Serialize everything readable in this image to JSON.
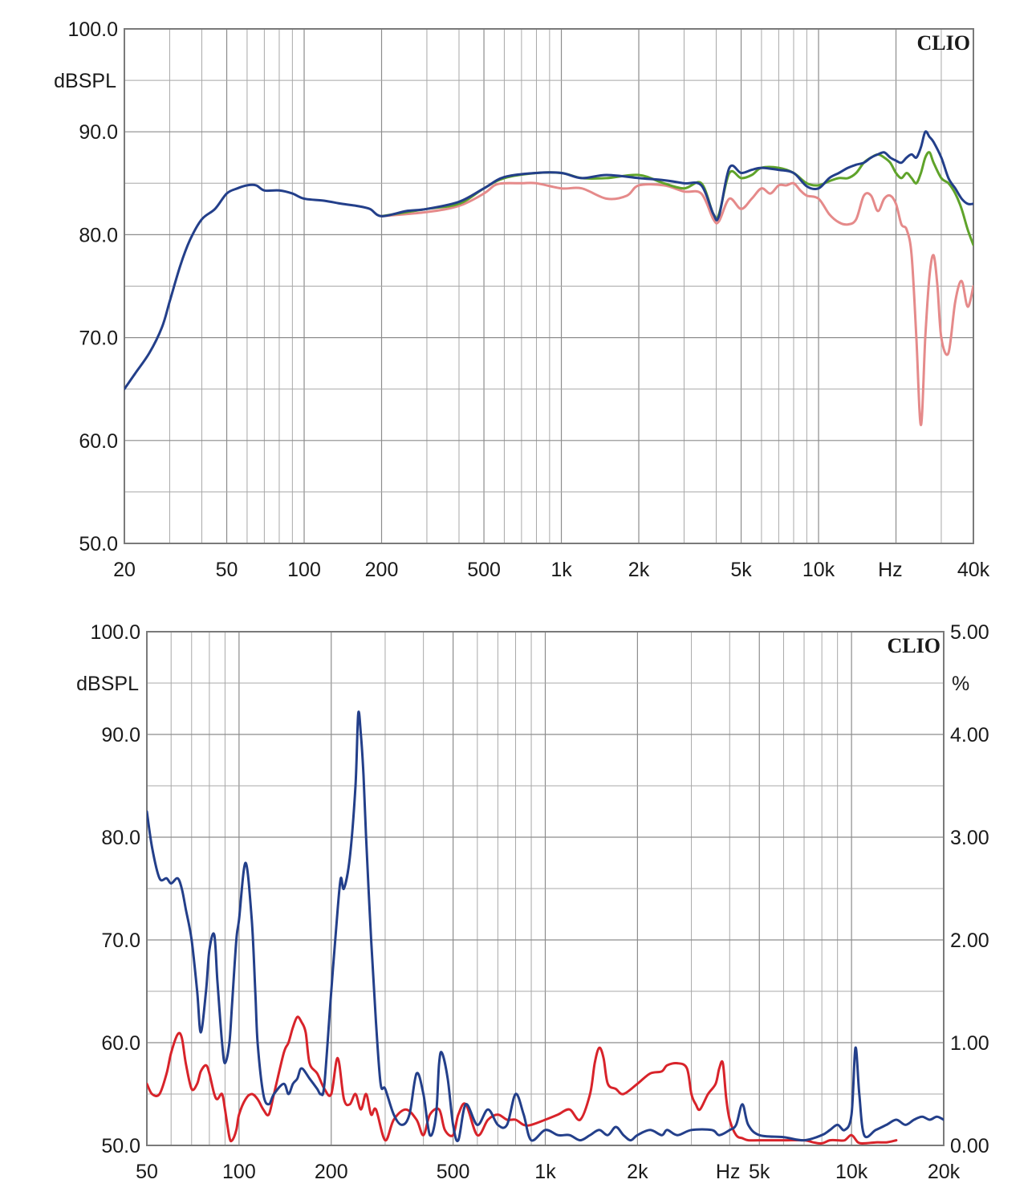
{
  "colors": {
    "blue": "#233f8a",
    "green": "#5fa32a",
    "pink": "#e58a8a",
    "red": "#d8232a"
  },
  "chart_data": [
    {
      "type": "line",
      "brand": "CLIO",
      "ylabel": "dBSPL",
      "xlabel": "Hz",
      "xscale": "log",
      "xlim": [
        20,
        40000
      ],
      "ylim": [
        50,
        100
      ],
      "grid": true,
      "y_ticks": [
        "100.0",
        "90.0",
        "80.0",
        "70.0",
        "60.0",
        "50.0"
      ],
      "x_ticks": [
        {
          "label": "20",
          "value": 20
        },
        {
          "label": "50",
          "value": 50
        },
        {
          "label": "100",
          "value": 100
        },
        {
          "label": "200",
          "value": 200
        },
        {
          "label": "500",
          "value": 500
        },
        {
          "label": "1k",
          "value": 1000
        },
        {
          "label": "2k",
          "value": 2000
        },
        {
          "label": "5k",
          "value": 5000
        },
        {
          "label": "10k",
          "value": 10000
        },
        {
          "label": "Hz",
          "value": 19000
        },
        {
          "label": "40k",
          "value": 40000
        }
      ],
      "series": [
        {
          "color": "pink",
          "x": [
            200,
            300,
            400,
            500,
            550,
            600,
            700,
            800,
            1000,
            1200,
            1500,
            1800,
            2000,
            2500,
            3000,
            3500,
            3900,
            4100,
            4500,
            5000,
            5500,
            6000,
            6500,
            7000,
            7500,
            8000,
            8500,
            9000,
            10000,
            11000,
            12000,
            13000,
            14000,
            15000,
            16000,
            17000,
            18000,
            19000,
            20000,
            21000,
            22000,
            23000,
            24000,
            25000,
            26000,
            27000,
            28000,
            29000,
            30000,
            32000,
            34000,
            36000,
            38000,
            40000
          ],
          "y": [
            81.8,
            82.2,
            82.8,
            84.0,
            84.8,
            85.0,
            85.0,
            85.0,
            84.5,
            84.5,
            83.5,
            83.8,
            84.8,
            84.8,
            84.2,
            84.0,
            81.5,
            81.3,
            83.5,
            82.5,
            83.5,
            84.5,
            84.0,
            84.8,
            84.8,
            85.0,
            84.3,
            83.8,
            83.5,
            82.0,
            81.2,
            81.0,
            81.5,
            83.8,
            83.8,
            82.3,
            83.5,
            83.8,
            83.0,
            81.0,
            80.5,
            78.0,
            70.0,
            61.5,
            70.0,
            76.0,
            78.0,
            75.0,
            70.0,
            68.5,
            73.5,
            75.5,
            73.0,
            75.0
          ]
        },
        {
          "color": "green",
          "x": [
            200,
            300,
            400,
            500,
            600,
            800,
            1000,
            1200,
            1500,
            2000,
            2500,
            3000,
            3500,
            3900,
            4100,
            4500,
            5000,
            5500,
            6000,
            7000,
            8000,
            9000,
            10000,
            11000,
            12000,
            13000,
            14000,
            15000,
            16000,
            17000,
            18000,
            19000,
            20000,
            21000,
            22000,
            23000,
            24000,
            25000,
            26000,
            27000,
            28000,
            30000,
            32000,
            34000,
            36000,
            38000,
            40000
          ],
          "y": [
            81.8,
            82.5,
            83.0,
            84.5,
            85.5,
            86.0,
            86.0,
            85.5,
            85.5,
            85.8,
            85.0,
            84.5,
            85.0,
            82.0,
            82.0,
            86.0,
            85.5,
            85.8,
            86.5,
            86.5,
            86.0,
            85.0,
            84.8,
            85.2,
            85.5,
            85.5,
            86.0,
            87.0,
            87.5,
            87.8,
            87.5,
            87.0,
            86.0,
            85.5,
            86.0,
            85.5,
            85.0,
            86.0,
            87.5,
            88.0,
            87.0,
            85.5,
            85.0,
            84.0,
            82.5,
            80.5,
            79.0
          ]
        },
        {
          "color": "blue",
          "x": [
            20,
            22,
            25,
            28,
            30,
            33,
            36,
            40,
            45,
            50,
            55,
            60,
            65,
            70,
            80,
            90,
            100,
            120,
            140,
            160,
            180,
            200,
            250,
            300,
            400,
            500,
            600,
            800,
            1000,
            1200,
            1500,
            2000,
            2500,
            3000,
            3500,
            3900,
            4100,
            4500,
            5000,
            5500,
            6000,
            7000,
            8000,
            9000,
            10000,
            11000,
            12000,
            13000,
            14000,
            15000,
            16000,
            17000,
            18000,
            19000,
            20000,
            21000,
            22000,
            23000,
            24000,
            25000,
            26000,
            27000,
            28000,
            30000,
            32000,
            34000,
            36000,
            38000,
            40000
          ],
          "y": [
            65.0,
            66.5,
            68.5,
            71.0,
            73.5,
            77.0,
            79.5,
            81.5,
            82.5,
            84.0,
            84.5,
            84.8,
            84.8,
            84.3,
            84.3,
            84.0,
            83.5,
            83.3,
            83.0,
            82.8,
            82.5,
            81.8,
            82.3,
            82.5,
            83.2,
            84.5,
            85.6,
            86.0,
            86.0,
            85.5,
            85.8,
            85.5,
            85.3,
            85.0,
            84.8,
            82.0,
            81.8,
            86.5,
            86.0,
            86.3,
            86.5,
            86.3,
            86.0,
            84.7,
            84.5,
            85.5,
            86.0,
            86.5,
            86.8,
            87.0,
            87.5,
            87.8,
            88.0,
            87.5,
            87.2,
            87.0,
            87.5,
            87.8,
            87.5,
            88.5,
            90.0,
            89.5,
            89.0,
            87.5,
            85.5,
            84.5,
            83.5,
            83.0,
            83.0
          ]
        }
      ]
    },
    {
      "type": "line",
      "brand": "CLIO",
      "ylabel": "dBSPL",
      "y2label": "%",
      "xlabel": "Hz",
      "xscale": "log",
      "xlim": [
        50,
        20000
      ],
      "ylim": [
        50,
        100
      ],
      "y2lim": [
        0,
        5
      ],
      "grid": true,
      "y_ticks": [
        "100.0",
        "90.0",
        "80.0",
        "70.0",
        "60.0",
        "50.0"
      ],
      "y2_ticks": [
        "5.00",
        "4.00",
        "3.00",
        "2.00",
        "1.00",
        "0.00"
      ],
      "x_ticks": [
        {
          "label": "50",
          "value": 50
        },
        {
          "label": "100",
          "value": 100
        },
        {
          "label": "200",
          "value": 200
        },
        {
          "label": "500",
          "value": 500
        },
        {
          "label": "1k",
          "value": 1000
        },
        {
          "label": "2k",
          "value": 2000
        },
        {
          "label": "Hz",
          "value": 3950
        },
        {
          "label": "5k",
          "value": 5000
        },
        {
          "label": "10k",
          "value": 10000
        },
        {
          "label": "20k",
          "value": 20000
        }
      ],
      "series": [
        {
          "color": "red",
          "axis": "right",
          "x": [
            50,
            52,
            55,
            58,
            60,
            63,
            65,
            67,
            70,
            73,
            75,
            78,
            80,
            83,
            85,
            88,
            90,
            93,
            95,
            98,
            100,
            105,
            110,
            115,
            120,
            125,
            130,
            140,
            145,
            150,
            155,
            160,
            165,
            170,
            180,
            190,
            200,
            210,
            220,
            230,
            240,
            250,
            260,
            270,
            280,
            300,
            320,
            350,
            380,
            400,
            420,
            450,
            470,
            500,
            520,
            550,
            600,
            650,
            700,
            750,
            800,
            850,
            900,
            1000,
            1100,
            1200,
            1300,
            1400,
            1450,
            1500,
            1550,
            1600,
            1700,
            1800,
            2000,
            2200,
            2400,
            2500,
            2700,
            2900,
            3000,
            3100,
            3200,
            3400,
            3600,
            3700,
            3800,
            3900,
            4000,
            4200,
            4400,
            4600,
            5000,
            6000,
            7000,
            7500,
            8000,
            8500,
            9000,
            9500,
            10000,
            10500,
            11000,
            12000,
            13000,
            14000
          ],
          "y": [
            0.6,
            0.5,
            0.5,
            0.7,
            0.9,
            1.08,
            1.05,
            0.8,
            0.55,
            0.6,
            0.72,
            0.78,
            0.7,
            0.5,
            0.45,
            0.5,
            0.35,
            0.08,
            0.05,
            0.15,
            0.3,
            0.45,
            0.5,
            0.45,
            0.35,
            0.3,
            0.5,
            0.9,
            1.0,
            1.15,
            1.25,
            1.2,
            1.1,
            0.8,
            0.7,
            0.55,
            0.5,
            0.85,
            0.45,
            0.4,
            0.5,
            0.35,
            0.5,
            0.3,
            0.35,
            0.05,
            0.25,
            0.35,
            0.25,
            0.1,
            0.3,
            0.35,
            0.15,
            0.1,
            0.3,
            0.4,
            0.1,
            0.25,
            0.3,
            0.25,
            0.25,
            0.2,
            0.2,
            0.25,
            0.3,
            0.35,
            0.25,
            0.5,
            0.8,
            0.95,
            0.85,
            0.6,
            0.55,
            0.5,
            0.6,
            0.7,
            0.72,
            0.78,
            0.8,
            0.75,
            0.5,
            0.4,
            0.35,
            0.5,
            0.6,
            0.75,
            0.8,
            0.45,
            0.25,
            0.1,
            0.07,
            0.05,
            0.05,
            0.05,
            0.05,
            0.03,
            0.02,
            0.05,
            0.05,
            0.05,
            0.1,
            0.03,
            0.02,
            0.03,
            0.03,
            0.05
          ]
        },
        {
          "color": "blue",
          "axis": "left",
          "x": [
            50,
            52,
            55,
            58,
            60,
            63,
            65,
            67,
            70,
            73,
            75,
            78,
            80,
            83,
            85,
            88,
            90,
            93,
            95,
            98,
            100,
            105,
            110,
            113,
            115,
            120,
            125,
            130,
            140,
            145,
            150,
            155,
            160,
            170,
            180,
            185,
            190,
            200,
            210,
            215,
            220,
            230,
            240,
            245,
            250,
            255,
            260,
            270,
            280,
            290,
            300,
            320,
            340,
            360,
            380,
            400,
            420,
            440,
            450,
            460,
            480,
            500,
            520,
            550,
            600,
            650,
            700,
            750,
            800,
            850,
            900,
            1000,
            1100,
            1200,
            1300,
            1400,
            1500,
            1600,
            1700,
            1800,
            1900,
            2000,
            2200,
            2400,
            2500,
            2700,
            3000,
            3500,
            3700,
            4000,
            4200,
            4400,
            4600,
            5000,
            6000,
            7000,
            8000,
            8500,
            9000,
            9500,
            10000,
            10300,
            10600,
            11000,
            12000,
            13000,
            14000,
            15000,
            16000,
            17000,
            18000,
            19000,
            20000
          ],
          "y": [
            82.5,
            79.0,
            76.0,
            76.0,
            75.5,
            76.0,
            75.0,
            73.0,
            70.0,
            65.0,
            61.0,
            65.0,
            69.0,
            70.5,
            66.0,
            60.0,
            58.0,
            60.0,
            64.0,
            70.0,
            72.0,
            77.5,
            72.0,
            65.0,
            60.0,
            55.0,
            54.0,
            55.0,
            56.0,
            55.0,
            56.0,
            56.5,
            57.5,
            56.5,
            55.5,
            55.0,
            56.0,
            65.0,
            73.0,
            76.0,
            75.0,
            78.0,
            85.0,
            92.0,
            90.0,
            86.0,
            80.0,
            70.0,
            62.0,
            56.0,
            55.5,
            53.0,
            52.0,
            53.0,
            57.0,
            55.0,
            51.0,
            53.0,
            58.0,
            59.0,
            56.5,
            52.0,
            50.5,
            54.0,
            52.0,
            53.5,
            52.0,
            52.0,
            55.0,
            53.0,
            50.5,
            51.5,
            51.0,
            51.0,
            50.5,
            51.0,
            51.5,
            51.0,
            51.8,
            51.0,
            50.5,
            51.0,
            51.5,
            51.0,
            51.5,
            51.0,
            51.5,
            51.5,
            51.0,
            51.5,
            52.0,
            54.0,
            52.0,
            51.0,
            50.8,
            50.5,
            51.0,
            51.5,
            52.0,
            51.5,
            53.0,
            59.5,
            55.0,
            51.0,
            51.5,
            52.0,
            52.5,
            52.0,
            52.5,
            52.8,
            52.5,
            52.8,
            52.5
          ]
        }
      ]
    }
  ]
}
